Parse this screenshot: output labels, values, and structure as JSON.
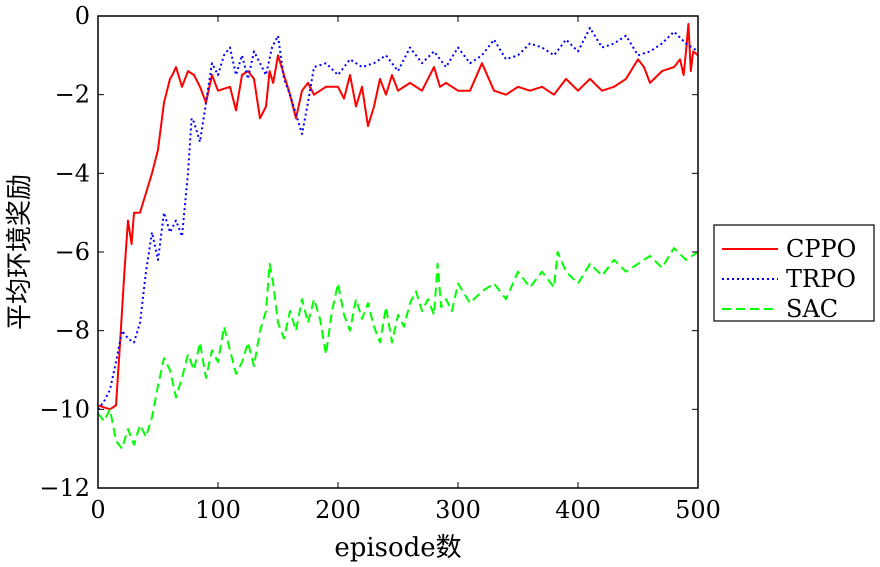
{
  "chart_data": {
    "type": "line",
    "xlabel": "episode数",
    "ylabel": "平均环境奖励",
    "xlim": [
      0,
      500
    ],
    "ylim": [
      -12,
      0
    ],
    "xticks": [
      0,
      100,
      200,
      300,
      400,
      500
    ],
    "yticks": [
      0,
      -2,
      -4,
      -6,
      -8,
      -10,
      -12
    ],
    "xtick_labels": [
      "0",
      "100",
      "200",
      "300",
      "400",
      "500"
    ],
    "ytick_labels": [
      "0",
      "−2",
      "−4",
      "−6",
      "−8",
      "−10",
      "−12"
    ],
    "grid": false,
    "legend_position": "right, outside plot",
    "series": [
      {
        "name": "CPPO",
        "color": "#ff0000",
        "style": "solid",
        "x": [
          0,
          10,
          15,
          18,
          20,
          22,
          25,
          28,
          30,
          35,
          40,
          45,
          50,
          55,
          60,
          62,
          65,
          70,
          75,
          80,
          85,
          90,
          95,
          100,
          110,
          115,
          120,
          125,
          130,
          135,
          140,
          143,
          146,
          150,
          155,
          160,
          165,
          170,
          175,
          180,
          190,
          200,
          205,
          210,
          215,
          220,
          225,
          230,
          235,
          240,
          245,
          250,
          260,
          270,
          280,
          285,
          290,
          300,
          310,
          320,
          330,
          340,
          350,
          360,
          370,
          380,
          390,
          400,
          410,
          420,
          430,
          440,
          450,
          455,
          460,
          470,
          480,
          485,
          488,
          490,
          492,
          494,
          496,
          500
        ],
        "y": [
          -9.9,
          -10.0,
          -9.9,
          -8.5,
          -7.5,
          -6.5,
          -5.2,
          -5.8,
          -5.0,
          -5.0,
          -4.5,
          -4.0,
          -3.4,
          -2.2,
          -1.6,
          -1.5,
          -1.3,
          -1.8,
          -1.4,
          -1.5,
          -1.8,
          -2.2,
          -1.5,
          -1.9,
          -1.8,
          -2.4,
          -1.5,
          -1.4,
          -1.6,
          -2.6,
          -2.3,
          -1.4,
          -1.7,
          -1.0,
          -1.5,
          -2.0,
          -2.6,
          -1.9,
          -1.7,
          -2.0,
          -1.8,
          -1.8,
          -2.1,
          -1.5,
          -2.3,
          -1.8,
          -2.8,
          -2.3,
          -1.6,
          -2.0,
          -1.5,
          -1.9,
          -1.7,
          -1.9,
          -1.3,
          -1.8,
          -1.7,
          -1.9,
          -1.9,
          -1.2,
          -1.9,
          -2.0,
          -1.8,
          -1.9,
          -1.8,
          -2.0,
          -1.6,
          -1.9,
          -1.6,
          -1.9,
          -1.8,
          -1.6,
          -1.1,
          -1.3,
          -1.7,
          -1.4,
          -1.3,
          -1.1,
          -1.5,
          -0.9,
          -0.2,
          -1.4,
          -0.9,
          -1.0
        ]
      },
      {
        "name": "TRPO",
        "color": "#0000ff",
        "style": "dotted",
        "x": [
          0,
          5,
          10,
          15,
          20,
          25,
          30,
          35,
          40,
          45,
          50,
          55,
          60,
          65,
          70,
          75,
          78,
          80,
          85,
          90,
          95,
          100,
          105,
          110,
          115,
          120,
          125,
          130,
          135,
          140,
          145,
          150,
          155,
          160,
          165,
          170,
          175,
          180,
          190,
          200,
          210,
          220,
          230,
          240,
          250,
          260,
          270,
          280,
          290,
          300,
          310,
          320,
          330,
          340,
          350,
          360,
          370,
          380,
          390,
          400,
          410,
          420,
          430,
          440,
          450,
          460,
          470,
          480,
          490,
          500
        ],
        "y": [
          -10.0,
          -9.8,
          -9.5,
          -8.8,
          -8.0,
          -8.2,
          -8.3,
          -7.8,
          -6.5,
          -5.5,
          -6.2,
          -5.0,
          -5.5,
          -5.2,
          -5.6,
          -4.0,
          -2.6,
          -2.7,
          -3.2,
          -2.2,
          -1.2,
          -1.5,
          -1.0,
          -0.8,
          -1.5,
          -1.0,
          -1.6,
          -0.9,
          -1.2,
          -1.5,
          -0.8,
          -0.5,
          -1.6,
          -2.0,
          -2.5,
          -3.0,
          -2.2,
          -1.3,
          -1.2,
          -1.5,
          -1.1,
          -1.3,
          -1.2,
          -1.0,
          -1.4,
          -0.8,
          -1.2,
          -0.9,
          -1.3,
          -0.8,
          -1.2,
          -1.0,
          -0.6,
          -1.1,
          -1.0,
          -0.7,
          -0.8,
          -1.0,
          -0.6,
          -0.9,
          -0.3,
          -0.8,
          -0.7,
          -0.5,
          -1.0,
          -0.9,
          -0.7,
          -0.4,
          -0.7,
          -0.9
        ]
      },
      {
        "name": "SAC",
        "color": "#00ff00",
        "style": "dashed",
        "x": [
          0,
          5,
          10,
          15,
          20,
          25,
          30,
          35,
          40,
          45,
          50,
          55,
          60,
          65,
          70,
          75,
          80,
          85,
          90,
          95,
          100,
          105,
          110,
          115,
          120,
          125,
          130,
          135,
          140,
          143,
          146,
          150,
          155,
          160,
          165,
          170,
          175,
          180,
          185,
          190,
          195,
          200,
          205,
          210,
          215,
          220,
          225,
          230,
          235,
          240,
          245,
          250,
          255,
          260,
          265,
          270,
          275,
          280,
          283,
          286,
          290,
          295,
          300,
          310,
          320,
          330,
          340,
          350,
          360,
          370,
          380,
          383,
          390,
          400,
          410,
          420,
          430,
          440,
          450,
          460,
          470,
          480,
          490,
          500
        ],
        "y": [
          -10.1,
          -10.3,
          -10.0,
          -10.8,
          -11.0,
          -10.5,
          -10.9,
          -10.4,
          -10.7,
          -10.2,
          -9.4,
          -8.7,
          -9.0,
          -9.7,
          -9.2,
          -8.6,
          -9.0,
          -8.3,
          -9.2,
          -8.5,
          -8.8,
          -7.9,
          -8.5,
          -9.1,
          -8.8,
          -8.3,
          -8.9,
          -8.0,
          -7.5,
          -6.3,
          -6.8,
          -7.8,
          -8.2,
          -7.5,
          -8.0,
          -7.2,
          -7.8,
          -7.2,
          -7.7,
          -8.6,
          -7.5,
          -6.8,
          -7.6,
          -8.0,
          -7.2,
          -7.7,
          -7.3,
          -7.9,
          -8.3,
          -7.4,
          -8.3,
          -7.6,
          -7.9,
          -7.3,
          -7.0,
          -7.5,
          -7.2,
          -7.6,
          -6.3,
          -7.4,
          -7.2,
          -7.5,
          -6.8,
          -7.3,
          -7.0,
          -6.8,
          -7.2,
          -6.5,
          -6.9,
          -6.5,
          -6.9,
          -6.0,
          -6.5,
          -6.8,
          -6.3,
          -6.6,
          -6.2,
          -6.5,
          -6.3,
          -6.1,
          -6.4,
          -5.9,
          -6.2,
          -6.0
        ]
      }
    ]
  }
}
